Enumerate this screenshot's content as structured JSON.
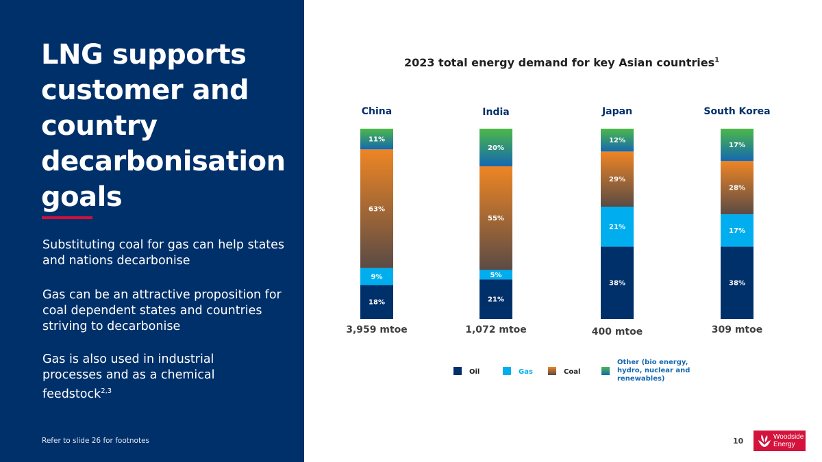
{
  "headline": [
    "LNG supports",
    "customer and",
    "country",
    "decarbonisation",
    "goals"
  ],
  "paragraphs": [
    {
      "text": "Substituting coal for gas can help states and nations decarbonise",
      "sup": ""
    },
    {
      "text": "Gas can be an attractive proposition for coal dependent states and countries striving to decarbonise",
      "sup": ""
    },
    {
      "text": "Gas is also used in industrial processes and as a chemical feedstock",
      "sup": "2,3"
    }
  ],
  "footnote": "Refer to slide 26 for footnotes",
  "page_number": "10",
  "logo": {
    "line1": "Woodside",
    "line2": "Energy",
    "color": "#d4133d"
  },
  "colors": {
    "panel": "#00306a",
    "accent_rule": "#d0103a",
    "oil": "#00306a",
    "gas": "#00aeef",
    "coal_top": "#ee8524",
    "coal_bottom": "#5a4b45",
    "other_top": "#4cb848",
    "other_bottom": "#1568b0"
  },
  "chart_data": {
    "type": "bar",
    "stacked": true,
    "normalized": true,
    "title": "2023 total energy demand for key Asian countries",
    "title_sup": "1",
    "categories": [
      "China",
      "India",
      "Japan",
      "South Korea"
    ],
    "totals": [
      "3,959 mtoe",
      "1,072 mtoe",
      "400 mtoe",
      "309 mtoe"
    ],
    "series": [
      {
        "name": "Oil",
        "values": [
          18,
          21,
          38,
          38
        ]
      },
      {
        "name": "Gas",
        "values": [
          9,
          5,
          21,
          17
        ]
      },
      {
        "name": "Coal",
        "values": [
          63,
          55,
          29,
          28
        ]
      },
      {
        "name": "Other (bio energy, hydro, nuclear and renewables)",
        "values": [
          11,
          20,
          12,
          17
        ]
      }
    ],
    "unit": "%",
    "ylim": [
      0,
      100
    ],
    "legend": {
      "position": "bottom",
      "items": [
        {
          "label": "Oil",
          "color": "#00306a"
        },
        {
          "label": "Gas",
          "color": "#00aeef"
        },
        {
          "label": "Coal",
          "color": "#8a5a33"
        },
        {
          "label": [
            "Other (bio energy,",
            "hydro, nuclear and",
            "renewables)"
          ],
          "color": "#2e8f7a"
        }
      ]
    }
  }
}
